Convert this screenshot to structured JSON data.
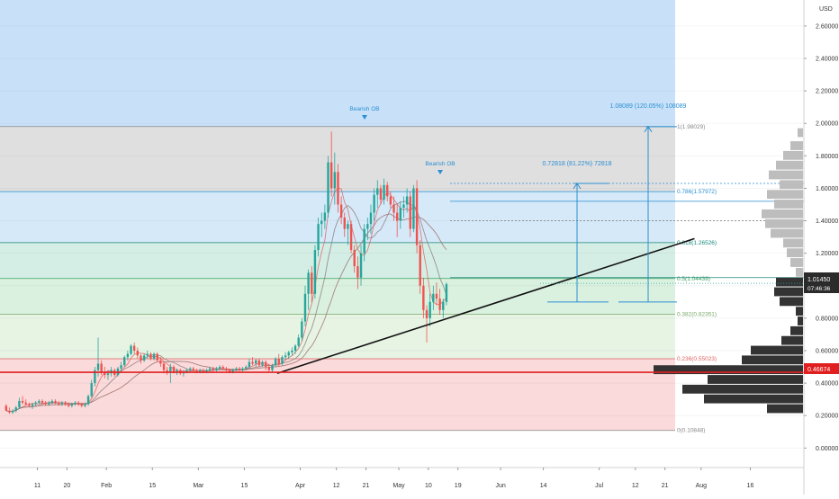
{
  "header": {
    "currency": "USD"
  },
  "chart_data": {
    "type": "candlestick",
    "ylim": [
      -0.12,
      2.76
    ],
    "yticks": [
      "0.00000",
      "0.20000",
      "0.40000",
      "0.60000",
      "0.80000",
      "1.00000",
      "1.20000",
      "1.40000",
      "1.60000",
      "1.80000",
      "2.00000",
      "2.20000",
      "2.40000",
      "2.60000"
    ],
    "xticks": [
      {
        "label": "11",
        "d": 10
      },
      {
        "label": "20",
        "d": 19
      },
      {
        "label": "Feb",
        "d": 31
      },
      {
        "label": "15",
        "d": 45
      },
      {
        "label": "Mar",
        "d": 59
      },
      {
        "label": "15",
        "d": 73
      },
      {
        "label": "Apr",
        "d": 90
      },
      {
        "label": "12",
        "d": 101
      },
      {
        "label": "21",
        "d": 110
      },
      {
        "label": "May",
        "d": 120
      },
      {
        "label": "10",
        "d": 129
      },
      {
        "label": "19",
        "d": 138
      },
      {
        "label": "Jun",
        "d": 151
      },
      {
        "label": "14",
        "d": 164
      },
      {
        "label": "Jul",
        "d": 181
      },
      {
        "label": "12",
        "d": 192
      },
      {
        "label": "21",
        "d": 201
      },
      {
        "label": "Aug",
        "d": 212
      },
      {
        "label": "16",
        "d": 227
      }
    ],
    "price_labels": {
      "current": "1.01450",
      "countdown": "07:46:36",
      "support": "0.46674"
    },
    "price_levels": {
      "current": 1.0145,
      "support": 0.46674
    },
    "fib_levels": [
      {
        "level": "1",
        "price": 1.98029,
        "label": "1(1.98029)"
      },
      {
        "level": "0.786",
        "price": 1.57972,
        "label": "0.786(1.57972)"
      },
      {
        "level": "0.618",
        "price": 1.26526,
        "label": "0.618(1.26526)"
      },
      {
        "level": "0.5",
        "price": 1.04439,
        "label": "0.5(1.04439)"
      },
      {
        "level": "0.382",
        "price": 0.82351,
        "label": "0.382(0.82351)"
      },
      {
        "level": "0.236",
        "price": 0.55023,
        "label": "0.236(0.55023)"
      },
      {
        "level": "0",
        "price": 0.10848,
        "label": "0(0.10848)"
      }
    ],
    "annotations": {
      "bearish_ob_1": "Bearish OB",
      "bearish_ob_2": "Bearish OB",
      "measure_1": "0.72818 (81.22%) 72818",
      "measure_2": "1.08089 (120.05%) 108089"
    },
    "measures": {
      "measure_1": {
        "from": 0.9,
        "to": 1.63
      },
      "measure_2": {
        "from": 0.9,
        "to": 1.98
      }
    },
    "trendline": {
      "start": {
        "d": 83,
        "price": 0.46
      },
      "end": {
        "d": 210,
        "price": 1.29
      }
    },
    "candles": [
      [
        0.26,
        0.27,
        0.24,
        0.23
      ],
      [
        0.23,
        0.25,
        0.21,
        0.22
      ],
      [
        0.22,
        0.24,
        0.21,
        0.23
      ],
      [
        0.23,
        0.26,
        0.22,
        0.25
      ],
      [
        0.25,
        0.31,
        0.24,
        0.29
      ],
      [
        0.29,
        0.32,
        0.27,
        0.28
      ],
      [
        0.28,
        0.3,
        0.26,
        0.27
      ],
      [
        0.27,
        0.28,
        0.25,
        0.26
      ],
      [
        0.26,
        0.28,
        0.24,
        0.27
      ],
      [
        0.27,
        0.29,
        0.26,
        0.28
      ],
      [
        0.28,
        0.3,
        0.27,
        0.29
      ],
      [
        0.29,
        0.3,
        0.27,
        0.28
      ],
      [
        0.28,
        0.29,
        0.26,
        0.27
      ],
      [
        0.27,
        0.29,
        0.26,
        0.28
      ],
      [
        0.28,
        0.3,
        0.27,
        0.29
      ],
      [
        0.29,
        0.3,
        0.27,
        0.28
      ],
      [
        0.28,
        0.29,
        0.26,
        0.27
      ],
      [
        0.27,
        0.29,
        0.26,
        0.28
      ],
      [
        0.28,
        0.29,
        0.26,
        0.27
      ],
      [
        0.27,
        0.28,
        0.25,
        0.26
      ],
      [
        0.26,
        0.28,
        0.25,
        0.27
      ],
      [
        0.27,
        0.29,
        0.26,
        0.28
      ],
      [
        0.28,
        0.29,
        0.26,
        0.27
      ],
      [
        0.27,
        0.28,
        0.25,
        0.26
      ],
      [
        0.26,
        0.28,
        0.25,
        0.27
      ],
      [
        0.27,
        0.33,
        0.26,
        0.32
      ],
      [
        0.32,
        0.42,
        0.31,
        0.4
      ],
      [
        0.4,
        0.5,
        0.38,
        0.48
      ],
      [
        0.48,
        0.68,
        0.44,
        0.52
      ],
      [
        0.52,
        0.54,
        0.45,
        0.47
      ],
      [
        0.47,
        0.5,
        0.43,
        0.45
      ],
      [
        0.45,
        0.48,
        0.42,
        0.46
      ],
      [
        0.46,
        0.5,
        0.44,
        0.48
      ],
      [
        0.48,
        0.49,
        0.44,
        0.45
      ],
      [
        0.45,
        0.5,
        0.44,
        0.49
      ],
      [
        0.49,
        0.53,
        0.47,
        0.51
      ],
      [
        0.51,
        0.57,
        0.5,
        0.56
      ],
      [
        0.56,
        0.6,
        0.54,
        0.58
      ],
      [
        0.58,
        0.64,
        0.57,
        0.63
      ],
      [
        0.63,
        0.65,
        0.58,
        0.6
      ],
      [
        0.6,
        0.62,
        0.55,
        0.57
      ],
      [
        0.57,
        0.58,
        0.52,
        0.54
      ],
      [
        0.54,
        0.58,
        0.53,
        0.57
      ],
      [
        0.57,
        0.6,
        0.55,
        0.58
      ],
      [
        0.58,
        0.59,
        0.54,
        0.55
      ],
      [
        0.55,
        0.59,
        0.54,
        0.58
      ],
      [
        0.58,
        0.59,
        0.53,
        0.54
      ],
      [
        0.54,
        0.56,
        0.5,
        0.52
      ],
      [
        0.52,
        0.53,
        0.46,
        0.48
      ],
      [
        0.48,
        0.5,
        0.45,
        0.47
      ],
      [
        0.47,
        0.52,
        0.4,
        0.5
      ],
      [
        0.5,
        0.51,
        0.46,
        0.47
      ],
      [
        0.47,
        0.49,
        0.45,
        0.48
      ],
      [
        0.48,
        0.49,
        0.45,
        0.46
      ],
      [
        0.46,
        0.48,
        0.44,
        0.47
      ],
      [
        0.47,
        0.49,
        0.46,
        0.48
      ],
      [
        0.48,
        0.5,
        0.47,
        0.49
      ],
      [
        0.49,
        0.5,
        0.47,
        0.48
      ],
      [
        0.48,
        0.49,
        0.46,
        0.47
      ],
      [
        0.47,
        0.49,
        0.46,
        0.48
      ],
      [
        0.48,
        0.49,
        0.46,
        0.47
      ],
      [
        0.47,
        0.49,
        0.46,
        0.48
      ],
      [
        0.48,
        0.5,
        0.47,
        0.49
      ],
      [
        0.49,
        0.5,
        0.47,
        0.48
      ],
      [
        0.48,
        0.5,
        0.47,
        0.49
      ],
      [
        0.49,
        0.51,
        0.48,
        0.5
      ],
      [
        0.5,
        0.51,
        0.48,
        0.49
      ],
      [
        0.49,
        0.5,
        0.47,
        0.48
      ],
      [
        0.48,
        0.49,
        0.46,
        0.47
      ],
      [
        0.47,
        0.49,
        0.46,
        0.48
      ],
      [
        0.48,
        0.5,
        0.47,
        0.49
      ],
      [
        0.49,
        0.5,
        0.47,
        0.48
      ],
      [
        0.48,
        0.5,
        0.47,
        0.49
      ],
      [
        0.49,
        0.51,
        0.48,
        0.5
      ],
      [
        0.5,
        0.55,
        0.49,
        0.53
      ],
      [
        0.53,
        0.56,
        0.51,
        0.52
      ],
      [
        0.52,
        0.55,
        0.5,
        0.54
      ],
      [
        0.54,
        0.55,
        0.5,
        0.51
      ],
      [
        0.51,
        0.54,
        0.5,
        0.53
      ],
      [
        0.53,
        0.54,
        0.48,
        0.5
      ],
      [
        0.5,
        0.52,
        0.47,
        0.48
      ],
      [
        0.48,
        0.52,
        0.47,
        0.51
      ],
      [
        0.51,
        0.56,
        0.5,
        0.55
      ],
      [
        0.55,
        0.58,
        0.5,
        0.52
      ],
      [
        0.52,
        0.57,
        0.51,
        0.56
      ],
      [
        0.56,
        0.59,
        0.54,
        0.57
      ],
      [
        0.57,
        0.6,
        0.55,
        0.59
      ],
      [
        0.59,
        0.62,
        0.57,
        0.6
      ],
      [
        0.6,
        0.64,
        0.58,
        0.63
      ],
      [
        0.63,
        0.7,
        0.62,
        0.68
      ],
      [
        0.68,
        0.8,
        0.66,
        0.78
      ],
      [
        0.78,
        1.0,
        0.75,
        0.95
      ],
      [
        0.95,
        1.1,
        0.85,
        1.08
      ],
      [
        1.08,
        1.12,
        0.9,
        0.95
      ],
      [
        0.95,
        1.25,
        0.92,
        1.22
      ],
      [
        1.22,
        1.42,
        1.18,
        1.38
      ],
      [
        1.38,
        1.45,
        1.3,
        1.4
      ],
      [
        1.4,
        1.5,
        1.35,
        1.45
      ],
      [
        1.45,
        1.8,
        1.42,
        1.76
      ],
      [
        1.76,
        1.95,
        1.55,
        1.6
      ],
      [
        1.6,
        1.82,
        1.5,
        1.7
      ],
      [
        1.7,
        1.75,
        1.45,
        1.5
      ],
      [
        1.5,
        1.55,
        1.38,
        1.42
      ],
      [
        1.42,
        1.45,
        1.3,
        1.35
      ],
      [
        1.35,
        1.4,
        1.25,
        1.38
      ],
      [
        1.38,
        1.4,
        1.2,
        1.22
      ],
      [
        1.22,
        1.25,
        1.08,
        1.12
      ],
      [
        1.12,
        1.18,
        0.98,
        1.05
      ],
      [
        1.05,
        1.25,
        1.0,
        1.2
      ],
      [
        1.2,
        1.38,
        1.15,
        1.35
      ],
      [
        1.35,
        1.42,
        1.28,
        1.38
      ],
      [
        1.38,
        1.5,
        1.32,
        1.45
      ],
      [
        1.45,
        1.6,
        1.4,
        1.56
      ],
      [
        1.56,
        1.65,
        1.48,
        1.6
      ],
      [
        1.6,
        1.62,
        1.5,
        1.53
      ],
      [
        1.53,
        1.66,
        1.5,
        1.62
      ],
      [
        1.62,
        1.64,
        1.52,
        1.55
      ],
      [
        1.55,
        1.58,
        1.48,
        1.5
      ],
      [
        1.5,
        1.55,
        1.4,
        1.45
      ],
      [
        1.45,
        1.5,
        1.3,
        1.4
      ],
      [
        1.4,
        1.52,
        1.35,
        1.48
      ],
      [
        1.48,
        1.55,
        1.42,
        1.5
      ],
      [
        1.5,
        1.6,
        1.45,
        1.55
      ],
      [
        1.55,
        1.58,
        1.3,
        1.35
      ],
      [
        1.35,
        1.62,
        1.33,
        1.6
      ],
      [
        1.6,
        1.65,
        1.2,
        1.25
      ],
      [
        1.25,
        1.28,
        0.95,
        1.0
      ],
      [
        1.0,
        1.05,
        0.8,
        0.85
      ],
      [
        0.85,
        0.88,
        0.65,
        0.8
      ],
      [
        0.8,
        0.95,
        0.75,
        0.9
      ],
      [
        0.9,
        1.0,
        0.85,
        0.95
      ],
      [
        0.95,
        1.02,
        0.88,
        0.92
      ],
      [
        0.92,
        0.98,
        0.82,
        0.85
      ],
      [
        0.85,
        0.92,
        0.8,
        0.9
      ],
      [
        0.9,
        1.02,
        0.88,
        1.01
      ]
    ]
  }
}
